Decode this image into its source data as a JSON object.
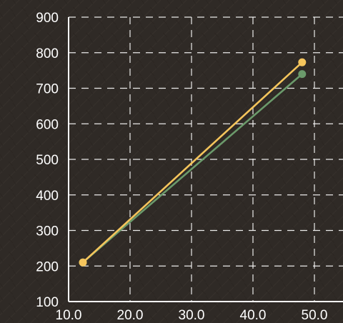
{
  "chart_data": {
    "type": "line",
    "title": "",
    "xlabel": "",
    "ylabel": "",
    "x_ticks": [
      "10.0",
      "20.0",
      "30.0",
      "40.0",
      "50.0"
    ],
    "y_ticks": [
      "100",
      "200",
      "300",
      "400",
      "500",
      "600",
      "700",
      "800",
      "900"
    ],
    "xlim": [
      10,
      50
    ],
    "ylim": [
      100,
      900
    ],
    "grid": true,
    "legend": "none",
    "background": "#2f2a26",
    "series": [
      {
        "color": "#6b9a6b",
        "x": [
          10,
          48
        ],
        "y": [
          210,
          740
        ]
      },
      {
        "color": "#f5c55c",
        "x": [
          10,
          48
        ],
        "y": [
          210,
          773
        ]
      }
    ]
  }
}
